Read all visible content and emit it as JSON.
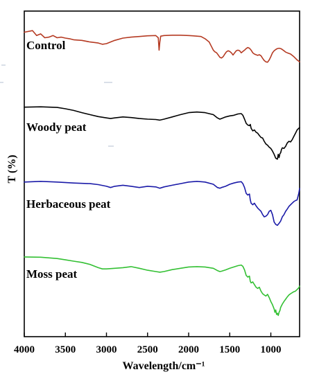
{
  "chart_data": {
    "type": "line",
    "xlabel": "Wavelength/cm⁻¹",
    "ylabel": "T (%)",
    "xlim": [
      4000,
      650
    ],
    "x_reversed": true,
    "xticks": [
      4000,
      3500,
      3000,
      2500,
      2000,
      1500,
      1000
    ],
    "xtick_labels": [
      "4000",
      "3500",
      "3000",
      "2500",
      "2000",
      "1500",
      "1000"
    ],
    "grid": false,
    "legend": "inline labels",
    "series": [
      {
        "name": "Control",
        "color": "#b53a22",
        "points": [
          [
            4000,
            0.935
          ],
          [
            3900,
            0.94
          ],
          [
            3850,
            0.925
          ],
          [
            3800,
            0.93
          ],
          [
            3750,
            0.918
          ],
          [
            3700,
            0.92
          ],
          [
            3650,
            0.925
          ],
          [
            3600,
            0.918
          ],
          [
            3550,
            0.92
          ],
          [
            3500,
            0.917
          ],
          [
            3450,
            0.915
          ],
          [
            3400,
            0.912
          ],
          [
            3300,
            0.91
          ],
          [
            3200,
            0.905
          ],
          [
            3100,
            0.902
          ],
          [
            3050,
            0.898
          ],
          [
            3000,
            0.9
          ],
          [
            2950,
            0.905
          ],
          [
            2900,
            0.91
          ],
          [
            2800,
            0.917
          ],
          [
            2700,
            0.92
          ],
          [
            2600,
            0.922
          ],
          [
            2500,
            0.924
          ],
          [
            2400,
            0.925
          ],
          [
            2370,
            0.918
          ],
          [
            2360,
            0.88
          ],
          [
            2350,
            0.905
          ],
          [
            2340,
            0.923
          ],
          [
            2300,
            0.925
          ],
          [
            2200,
            0.926
          ],
          [
            2100,
            0.926
          ],
          [
            2000,
            0.925
          ],
          [
            1950,
            0.924
          ],
          [
            1900,
            0.923
          ],
          [
            1850,
            0.922
          ],
          [
            1800,
            0.915
          ],
          [
            1750,
            0.905
          ],
          [
            1720,
            0.89
          ],
          [
            1700,
            0.88
          ],
          [
            1680,
            0.875
          ],
          [
            1660,
            0.872
          ],
          [
            1640,
            0.865
          ],
          [
            1620,
            0.858
          ],
          [
            1600,
            0.856
          ],
          [
            1580,
            0.86
          ],
          [
            1560,
            0.868
          ],
          [
            1540,
            0.875
          ],
          [
            1520,
            0.878
          ],
          [
            1500,
            0.876
          ],
          [
            1480,
            0.872
          ],
          [
            1460,
            0.865
          ],
          [
            1440,
            0.872
          ],
          [
            1420,
            0.878
          ],
          [
            1400,
            0.88
          ],
          [
            1380,
            0.878
          ],
          [
            1360,
            0.872
          ],
          [
            1340,
            0.876
          ],
          [
            1320,
            0.88
          ],
          [
            1300,
            0.885
          ],
          [
            1280,
            0.888
          ],
          [
            1260,
            0.886
          ],
          [
            1240,
            0.88
          ],
          [
            1220,
            0.872
          ],
          [
            1200,
            0.868
          ],
          [
            1180,
            0.866
          ],
          [
            1160,
            0.864
          ],
          [
            1140,
            0.866
          ],
          [
            1120,
            0.863
          ],
          [
            1100,
            0.855
          ],
          [
            1080,
            0.848
          ],
          [
            1060,
            0.844
          ],
          [
            1040,
            0.843
          ],
          [
            1020,
            0.85
          ],
          [
            1000,
            0.86
          ],
          [
            980,
            0.872
          ],
          [
            960,
            0.878
          ],
          [
            940,
            0.882
          ],
          [
            920,
            0.885
          ],
          [
            900,
            0.886
          ],
          [
            880,
            0.885
          ],
          [
            860,
            0.882
          ],
          [
            840,
            0.878
          ],
          [
            820,
            0.874
          ],
          [
            800,
            0.872
          ],
          [
            780,
            0.87
          ],
          [
            760,
            0.868
          ],
          [
            740,
            0.864
          ],
          [
            720,
            0.86
          ],
          [
            700,
            0.855
          ],
          [
            680,
            0.85
          ],
          [
            660,
            0.846
          ],
          [
            650,
            0.844
          ]
        ]
      },
      {
        "name": "Woody peat",
        "color": "#000000",
        "points": [
          [
            4000,
            0.705
          ],
          [
            3800,
            0.706
          ],
          [
            3600,
            0.704
          ],
          [
            3500,
            0.7
          ],
          [
            3400,
            0.695
          ],
          [
            3300,
            0.688
          ],
          [
            3200,
            0.682
          ],
          [
            3100,
            0.676
          ],
          [
            3000,
            0.672
          ],
          [
            2950,
            0.67
          ],
          [
            2900,
            0.672
          ],
          [
            2800,
            0.675
          ],
          [
            2700,
            0.673
          ],
          [
            2600,
            0.67
          ],
          [
            2500,
            0.668
          ],
          [
            2400,
            0.667
          ],
          [
            2350,
            0.665
          ],
          [
            2300,
            0.668
          ],
          [
            2200,
            0.675
          ],
          [
            2100,
            0.682
          ],
          [
            2000,
            0.688
          ],
          [
            1900,
            0.69
          ],
          [
            1800,
            0.688
          ],
          [
            1700,
            0.682
          ],
          [
            1650,
            0.672
          ],
          [
            1620,
            0.668
          ],
          [
            1600,
            0.67
          ],
          [
            1550,
            0.675
          ],
          [
            1500,
            0.678
          ],
          [
            1450,
            0.68
          ],
          [
            1400,
            0.684
          ],
          [
            1360,
            0.685
          ],
          [
            1340,
            0.68
          ],
          [
            1320,
            0.668
          ],
          [
            1300,
            0.655
          ],
          [
            1280,
            0.65
          ],
          [
            1260,
            0.648
          ],
          [
            1250,
            0.652
          ],
          [
            1240,
            0.64
          ],
          [
            1220,
            0.632
          ],
          [
            1200,
            0.635
          ],
          [
            1180,
            0.628
          ],
          [
            1160,
            0.625
          ],
          [
            1140,
            0.618
          ],
          [
            1120,
            0.612
          ],
          [
            1100,
            0.61
          ],
          [
            1080,
            0.6
          ],
          [
            1060,
            0.592
          ],
          [
            1040,
            0.588
          ],
          [
            1020,
            0.582
          ],
          [
            1000,
            0.578
          ],
          [
            980,
            0.57
          ],
          [
            960,
            0.56
          ],
          [
            940,
            0.548
          ],
          [
            920,
            0.545
          ],
          [
            910,
            0.56
          ],
          [
            900,
            0.55
          ],
          [
            890,
            0.562
          ],
          [
            880,
            0.565
          ],
          [
            870,
            0.575
          ],
          [
            860,
            0.58
          ],
          [
            840,
            0.578
          ],
          [
            820,
            0.585
          ],
          [
            800,
            0.595
          ],
          [
            780,
            0.6
          ],
          [
            760,
            0.598
          ],
          [
            740,
            0.605
          ],
          [
            720,
            0.615
          ],
          [
            700,
            0.625
          ],
          [
            680,
            0.635
          ],
          [
            660,
            0.64
          ],
          [
            650,
            0.642
          ]
        ]
      },
      {
        "name": "Herbaceous peat",
        "color": "#1a1aa8",
        "points": [
          [
            4000,
            0.475
          ],
          [
            3800,
            0.477
          ],
          [
            3600,
            0.475
          ],
          [
            3400,
            0.472
          ],
          [
            3200,
            0.47
          ],
          [
            3100,
            0.467
          ],
          [
            3000,
            0.462
          ],
          [
            2950,
            0.458
          ],
          [
            2900,
            0.462
          ],
          [
            2800,
            0.465
          ],
          [
            2700,
            0.462
          ],
          [
            2600,
            0.458
          ],
          [
            2500,
            0.462
          ],
          [
            2400,
            0.46
          ],
          [
            2350,
            0.456
          ],
          [
            2300,
            0.46
          ],
          [
            2200,
            0.465
          ],
          [
            2100,
            0.47
          ],
          [
            2000,
            0.475
          ],
          [
            1900,
            0.477
          ],
          [
            1800,
            0.475
          ],
          [
            1700,
            0.468
          ],
          [
            1650,
            0.458
          ],
          [
            1620,
            0.456
          ],
          [
            1600,
            0.458
          ],
          [
            1550,
            0.462
          ],
          [
            1500,
            0.468
          ],
          [
            1450,
            0.472
          ],
          [
            1400,
            0.475
          ],
          [
            1360,
            0.476
          ],
          [
            1340,
            0.47
          ],
          [
            1320,
            0.458
          ],
          [
            1300,
            0.44
          ],
          [
            1280,
            0.435
          ],
          [
            1260,
            0.438
          ],
          [
            1250,
            0.42
          ],
          [
            1240,
            0.41
          ],
          [
            1220,
            0.405
          ],
          [
            1200,
            0.41
          ],
          [
            1180,
            0.402
          ],
          [
            1160,
            0.395
          ],
          [
            1140,
            0.39
          ],
          [
            1120,
            0.385
          ],
          [
            1100,
            0.375
          ],
          [
            1080,
            0.368
          ],
          [
            1060,
            0.37
          ],
          [
            1040,
            0.375
          ],
          [
            1020,
            0.385
          ],
          [
            1000,
            0.388
          ],
          [
            980,
            0.375
          ],
          [
            960,
            0.352
          ],
          [
            940,
            0.345
          ],
          [
            920,
            0.342
          ],
          [
            900,
            0.348
          ],
          [
            880,
            0.355
          ],
          [
            860,
            0.368
          ],
          [
            840,
            0.375
          ],
          [
            820,
            0.385
          ],
          [
            800,
            0.392
          ],
          [
            780,
            0.4
          ],
          [
            760,
            0.405
          ],
          [
            740,
            0.41
          ],
          [
            720,
            0.415
          ],
          [
            700,
            0.418
          ],
          [
            680,
            0.42
          ],
          [
            670,
            0.43
          ],
          [
            660,
            0.44
          ],
          [
            650,
            0.455
          ]
        ]
      },
      {
        "name": "Moss peat",
        "color": "#33c033",
        "points": [
          [
            4000,
            0.245
          ],
          [
            3800,
            0.244
          ],
          [
            3600,
            0.24
          ],
          [
            3500,
            0.236
          ],
          [
            3400,
            0.232
          ],
          [
            3300,
            0.228
          ],
          [
            3200,
            0.222
          ],
          [
            3100,
            0.212
          ],
          [
            3050,
            0.208
          ],
          [
            3000,
            0.208
          ],
          [
            2900,
            0.21
          ],
          [
            2800,
            0.212
          ],
          [
            2700,
            0.215
          ],
          [
            2600,
            0.21
          ],
          [
            2500,
            0.204
          ],
          [
            2400,
            0.2
          ],
          [
            2350,
            0.198
          ],
          [
            2300,
            0.2
          ],
          [
            2200,
            0.206
          ],
          [
            2100,
            0.21
          ],
          [
            2000,
            0.214
          ],
          [
            1900,
            0.215
          ],
          [
            1800,
            0.214
          ],
          [
            1700,
            0.21
          ],
          [
            1650,
            0.203
          ],
          [
            1620,
            0.2
          ],
          [
            1600,
            0.201
          ],
          [
            1550,
            0.205
          ],
          [
            1500,
            0.21
          ],
          [
            1450,
            0.214
          ],
          [
            1400,
            0.218
          ],
          [
            1360,
            0.22
          ],
          [
            1340,
            0.216
          ],
          [
            1320,
            0.205
          ],
          [
            1300,
            0.188
          ],
          [
            1280,
            0.183
          ],
          [
            1260,
            0.186
          ],
          [
            1250,
            0.17
          ],
          [
            1240,
            0.165
          ],
          [
            1220,
            0.168
          ],
          [
            1200,
            0.16
          ],
          [
            1180,
            0.152
          ],
          [
            1160,
            0.148
          ],
          [
            1140,
            0.152
          ],
          [
            1120,
            0.14
          ],
          [
            1100,
            0.132
          ],
          [
            1080,
            0.128
          ],
          [
            1060,
            0.125
          ],
          [
            1040,
            0.13
          ],
          [
            1020,
            0.12
          ],
          [
            1000,
            0.108
          ],
          [
            980,
            0.098
          ],
          [
            960,
            0.085
          ],
          [
            950,
            0.075
          ],
          [
            940,
            0.082
          ],
          [
            930,
            0.068
          ],
          [
            920,
            0.072
          ],
          [
            910,
            0.065
          ],
          [
            900,
            0.075
          ],
          [
            890,
            0.08
          ],
          [
            880,
            0.09
          ],
          [
            860,
            0.1
          ],
          [
            840,
            0.108
          ],
          [
            820,
            0.115
          ],
          [
            800,
            0.122
          ],
          [
            780,
            0.128
          ],
          [
            760,
            0.132
          ],
          [
            740,
            0.135
          ],
          [
            720,
            0.138
          ],
          [
            700,
            0.14
          ],
          [
            680,
            0.145
          ],
          [
            660,
            0.15
          ],
          [
            650,
            0.155
          ]
        ]
      }
    ]
  }
}
